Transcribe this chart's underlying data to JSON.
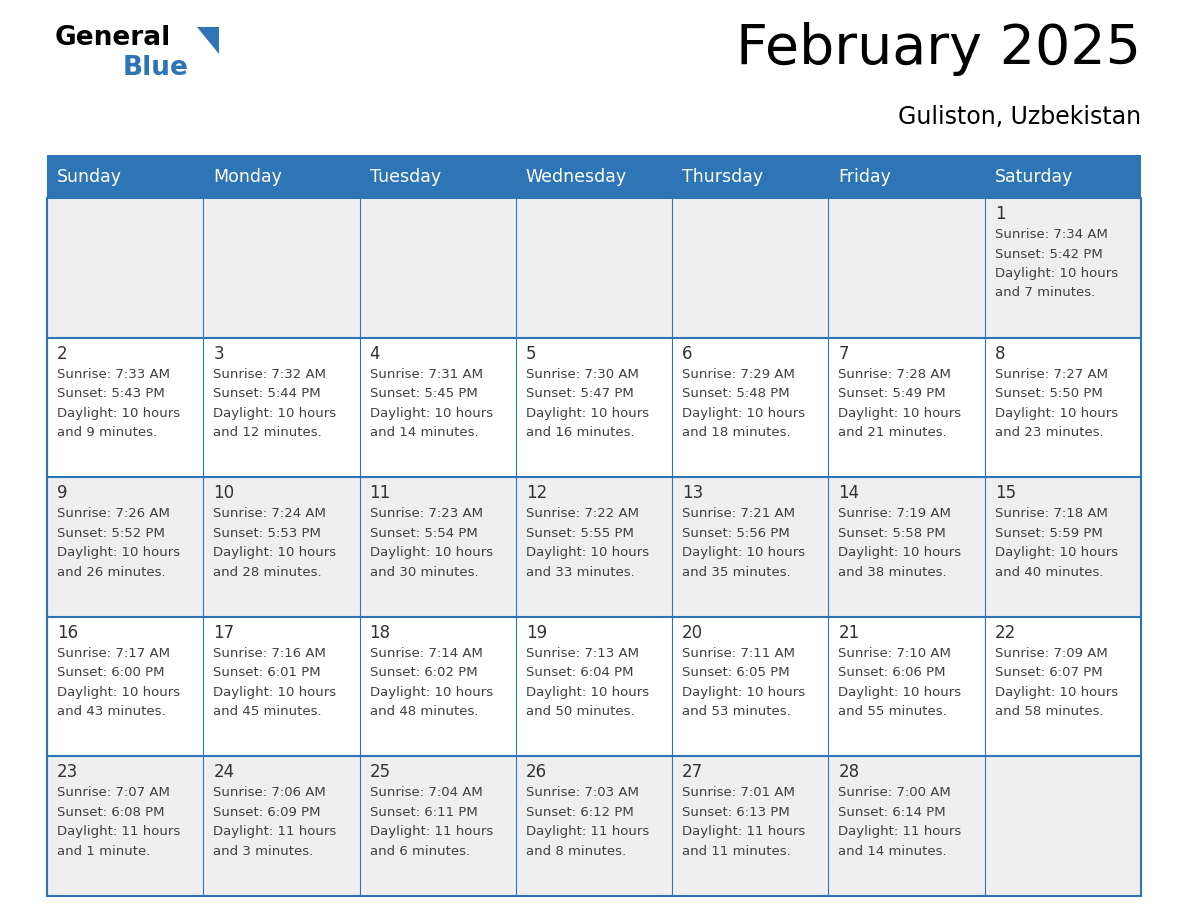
{
  "title": "February 2025",
  "subtitle": "Guliston, Uzbekistan",
  "days_of_week": [
    "Sunday",
    "Monday",
    "Tuesday",
    "Wednesday",
    "Thursday",
    "Friday",
    "Saturday"
  ],
  "header_bg": "#2E75B6",
  "header_text": "#FFFFFF",
  "cell_bg_odd": "#EFEFEF",
  "cell_bg_even": "#FFFFFF",
  "line_color": "#2E75B6",
  "text_color": "#404040",
  "day_num_color": "#333333",
  "calendar_data": [
    [
      null,
      null,
      null,
      null,
      null,
      null,
      {
        "day": 1,
        "sunrise": "7:34 AM",
        "sunset": "5:42 PM",
        "daylight": "10 hours and 7 minutes."
      }
    ],
    [
      {
        "day": 2,
        "sunrise": "7:33 AM",
        "sunset": "5:43 PM",
        "daylight": "10 hours and 9 minutes."
      },
      {
        "day": 3,
        "sunrise": "7:32 AM",
        "sunset": "5:44 PM",
        "daylight": "10 hours and 12 minutes."
      },
      {
        "day": 4,
        "sunrise": "7:31 AM",
        "sunset": "5:45 PM",
        "daylight": "10 hours and 14 minutes."
      },
      {
        "day": 5,
        "sunrise": "7:30 AM",
        "sunset": "5:47 PM",
        "daylight": "10 hours and 16 minutes."
      },
      {
        "day": 6,
        "sunrise": "7:29 AM",
        "sunset": "5:48 PM",
        "daylight": "10 hours and 18 minutes."
      },
      {
        "day": 7,
        "sunrise": "7:28 AM",
        "sunset": "5:49 PM",
        "daylight": "10 hours and 21 minutes."
      },
      {
        "day": 8,
        "sunrise": "7:27 AM",
        "sunset": "5:50 PM",
        "daylight": "10 hours and 23 minutes."
      }
    ],
    [
      {
        "day": 9,
        "sunrise": "7:26 AM",
        "sunset": "5:52 PM",
        "daylight": "10 hours and 26 minutes."
      },
      {
        "day": 10,
        "sunrise": "7:24 AM",
        "sunset": "5:53 PM",
        "daylight": "10 hours and 28 minutes."
      },
      {
        "day": 11,
        "sunrise": "7:23 AM",
        "sunset": "5:54 PM",
        "daylight": "10 hours and 30 minutes."
      },
      {
        "day": 12,
        "sunrise": "7:22 AM",
        "sunset": "5:55 PM",
        "daylight": "10 hours and 33 minutes."
      },
      {
        "day": 13,
        "sunrise": "7:21 AM",
        "sunset": "5:56 PM",
        "daylight": "10 hours and 35 minutes."
      },
      {
        "day": 14,
        "sunrise": "7:19 AM",
        "sunset": "5:58 PM",
        "daylight": "10 hours and 38 minutes."
      },
      {
        "day": 15,
        "sunrise": "7:18 AM",
        "sunset": "5:59 PM",
        "daylight": "10 hours and 40 minutes."
      }
    ],
    [
      {
        "day": 16,
        "sunrise": "7:17 AM",
        "sunset": "6:00 PM",
        "daylight": "10 hours and 43 minutes."
      },
      {
        "day": 17,
        "sunrise": "7:16 AM",
        "sunset": "6:01 PM",
        "daylight": "10 hours and 45 minutes."
      },
      {
        "day": 18,
        "sunrise": "7:14 AM",
        "sunset": "6:02 PM",
        "daylight": "10 hours and 48 minutes."
      },
      {
        "day": 19,
        "sunrise": "7:13 AM",
        "sunset": "6:04 PM",
        "daylight": "10 hours and 50 minutes."
      },
      {
        "day": 20,
        "sunrise": "7:11 AM",
        "sunset": "6:05 PM",
        "daylight": "10 hours and 53 minutes."
      },
      {
        "day": 21,
        "sunrise": "7:10 AM",
        "sunset": "6:06 PM",
        "daylight": "10 hours and 55 minutes."
      },
      {
        "day": 22,
        "sunrise": "7:09 AM",
        "sunset": "6:07 PM",
        "daylight": "10 hours and 58 minutes."
      }
    ],
    [
      {
        "day": 23,
        "sunrise": "7:07 AM",
        "sunset": "6:08 PM",
        "daylight": "11 hours and 1 minute."
      },
      {
        "day": 24,
        "sunrise": "7:06 AM",
        "sunset": "6:09 PM",
        "daylight": "11 hours and 3 minutes."
      },
      {
        "day": 25,
        "sunrise": "7:04 AM",
        "sunset": "6:11 PM",
        "daylight": "11 hours and 6 minutes."
      },
      {
        "day": 26,
        "sunrise": "7:03 AM",
        "sunset": "6:12 PM",
        "daylight": "11 hours and 8 minutes."
      },
      {
        "day": 27,
        "sunrise": "7:01 AM",
        "sunset": "6:13 PM",
        "daylight": "11 hours and 11 minutes."
      },
      {
        "day": 28,
        "sunrise": "7:00 AM",
        "sunset": "6:14 PM",
        "daylight": "11 hours and 14 minutes."
      },
      null
    ]
  ],
  "fig_width": 11.88,
  "fig_height": 9.18,
  "dpi": 100
}
